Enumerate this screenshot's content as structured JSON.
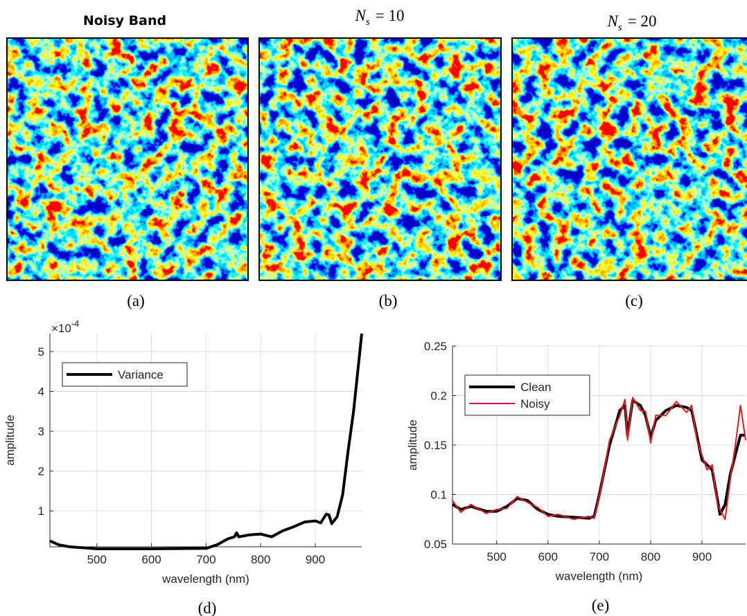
{
  "images": [
    {
      "title": "Noisy Band",
      "caption": "(a)"
    },
    {
      "title": {
        "symbol": "N",
        "subscript": "s",
        "rest": "= 10"
      },
      "caption": "(b)"
    },
    {
      "title": {
        "symbol": "N",
        "subscript": "s",
        "rest": "= 20"
      },
      "caption": "(c)"
    }
  ],
  "chart_data": [
    {
      "type": "line",
      "caption": "(d)",
      "xlabel": "wavelength (nm)",
      "ylabel": "amplitude",
      "exponent_label": {
        "base": "×10",
        "power": "-4"
      },
      "x": [
        414,
        430,
        450,
        500,
        600,
        700,
        720,
        740,
        752,
        756,
        760,
        780,
        800,
        820,
        840,
        860,
        880,
        900,
        910,
        920,
        925,
        930,
        940,
        950,
        960,
        970,
        980,
        985
      ],
      "series": [
        {
          "name": "Variance",
          "color": "#000000",
          "width": 4,
          "values": [
            0.25,
            0.15,
            0.1,
            0.05,
            0.05,
            0.06,
            0.15,
            0.3,
            0.35,
            0.45,
            0.35,
            0.4,
            0.42,
            0.35,
            0.5,
            0.6,
            0.72,
            0.75,
            0.7,
            0.92,
            0.9,
            0.68,
            0.85,
            1.4,
            2.5,
            3.5,
            4.8,
            5.45
          ]
        }
      ],
      "xlim": [
        414,
        985
      ],
      "ylim": [
        0.1,
        5.45
      ],
      "xticks": [
        500,
        600,
        700,
        800,
        900
      ],
      "yticks": [
        1,
        2,
        3,
        4,
        5
      ],
      "grid": true,
      "legend": "upper left"
    },
    {
      "type": "line",
      "caption": "(e)",
      "xlabel": "wavelength (nm)",
      "ylabel": "amplitude",
      "x": [
        414,
        430,
        450,
        480,
        500,
        520,
        540,
        560,
        580,
        600,
        620,
        650,
        680,
        690,
        700,
        720,
        740,
        750,
        755,
        765,
        780,
        790,
        800,
        810,
        830,
        850,
        870,
        880,
        890,
        900,
        910,
        920,
        930,
        935,
        945,
        955,
        965,
        975,
        985
      ],
      "series": [
        {
          "name": "Clean",
          "color": "#000000",
          "width": 4,
          "values": [
            0.09,
            0.085,
            0.088,
            0.083,
            0.083,
            0.088,
            0.096,
            0.094,
            0.085,
            0.08,
            0.078,
            0.077,
            0.076,
            0.078,
            0.1,
            0.15,
            0.185,
            0.19,
            0.16,
            0.195,
            0.19,
            0.18,
            0.158,
            0.175,
            0.185,
            0.19,
            0.188,
            0.185,
            0.16,
            0.135,
            0.13,
            0.125,
            0.095,
            0.08,
            0.09,
            0.12,
            0.14,
            0.16,
            0.16
          ]
        },
        {
          "name": "Noisy",
          "color": "#e41a1c",
          "width": 2,
          "values": [
            0.094,
            0.082,
            0.09,
            0.081,
            0.085,
            0.086,
            0.098,
            0.092,
            0.087,
            0.078,
            0.08,
            0.075,
            0.078,
            0.076,
            0.098,
            0.155,
            0.18,
            0.196,
            0.155,
            0.198,
            0.185,
            0.184,
            0.152,
            0.18,
            0.18,
            0.194,
            0.183,
            0.19,
            0.155,
            0.14,
            0.125,
            0.13,
            0.09,
            0.085,
            0.075,
            0.115,
            0.15,
            0.19,
            0.155
          ]
        }
      ],
      "xlim": [
        414,
        985
      ],
      "ylim": [
        0.05,
        0.25
      ],
      "xticks": [
        500,
        600,
        700,
        800,
        900
      ],
      "yticks": [
        0.05,
        0.1,
        0.15,
        0.2,
        0.25
      ],
      "grid": true,
      "legend": "upper left"
    }
  ]
}
